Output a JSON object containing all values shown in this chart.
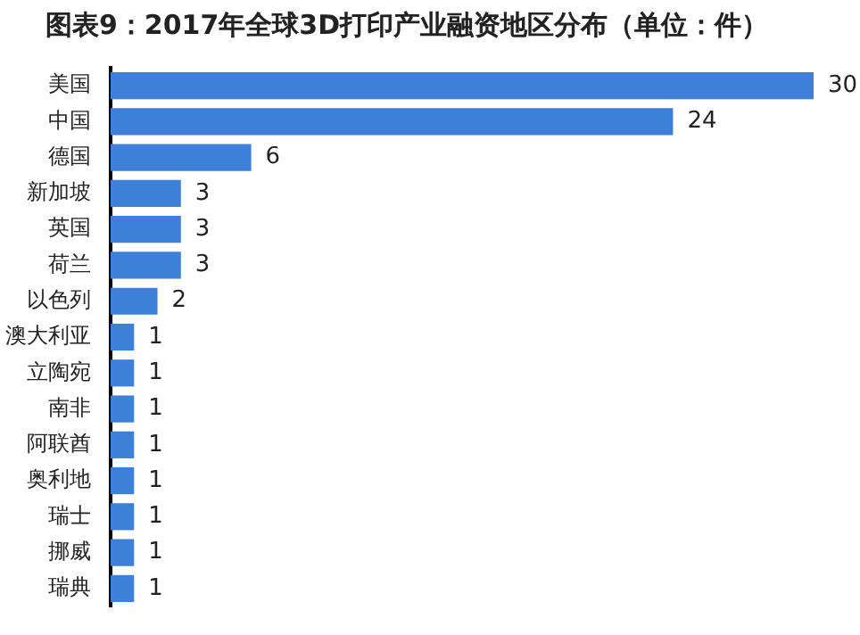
{
  "chart_data": {
    "type": "bar",
    "orientation": "horizontal",
    "title": "图表9：2017年全球3D打印产业融资地区分布（单位：件）",
    "categories": [
      "美国",
      "中国",
      "德国",
      "新加坡",
      "英国",
      "荷兰",
      "以色列",
      "澳大利亚",
      "立陶宛",
      "南非",
      "阿联酋",
      "奥利地",
      "瑞士",
      "挪威",
      "瑞典"
    ],
    "values": [
      30,
      24,
      6,
      3,
      3,
      3,
      2,
      1,
      1,
      1,
      1,
      1,
      1,
      1,
      1
    ],
    "color": "#3d7fd9",
    "data_labels": true,
    "grid": false,
    "legend": false
  }
}
